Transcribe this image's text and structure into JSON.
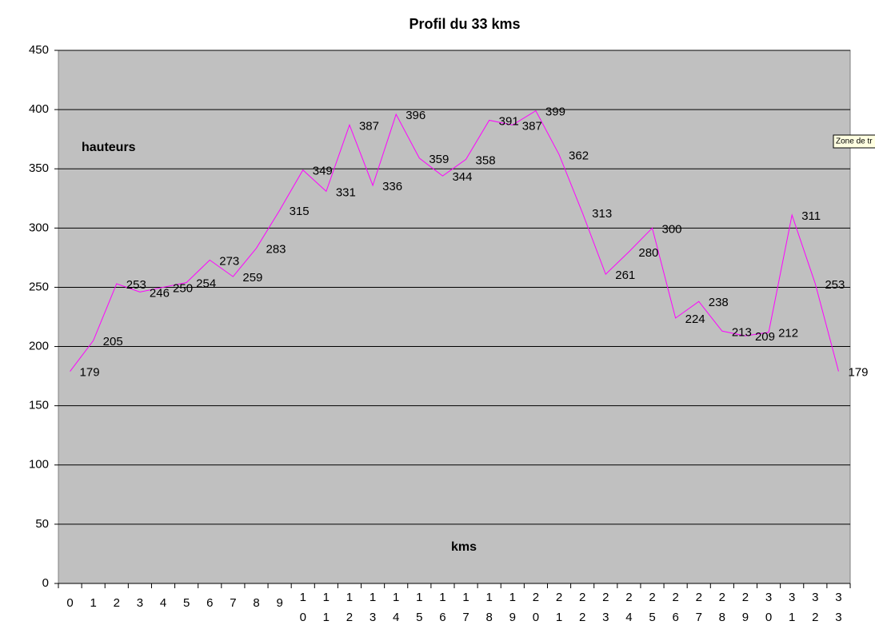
{
  "chart_data": {
    "type": "line",
    "title": "Profil du 33 kms",
    "annotations": [
      "hauteurs",
      "kms"
    ],
    "tooltip": "Zone de tr",
    "categories": [
      "0",
      "1",
      "2",
      "3",
      "4",
      "5",
      "6",
      "7",
      "8",
      "9",
      "10",
      "11",
      "12",
      "13",
      "14",
      "15",
      "16",
      "17",
      "18",
      "19",
      "20",
      "21",
      "22",
      "23",
      "24",
      "25",
      "26",
      "27",
      "28",
      "29",
      "30",
      "31",
      "32",
      "33"
    ],
    "values": [
      179,
      205,
      253,
      246,
      250,
      254,
      273,
      259,
      283,
      315,
      349,
      331,
      387,
      336,
      396,
      359,
      344,
      358,
      391,
      387,
      399,
      362,
      313,
      261,
      280,
      300,
      224,
      238,
      213,
      209,
      212,
      311,
      253,
      179
    ],
    "color": "#ff00ff",
    "background": "#c0c0c0",
    "ylim": [
      0,
      450
    ],
    "yticks": [
      0,
      50,
      100,
      150,
      200,
      250,
      300,
      350,
      400,
      450
    ],
    "grid": true
  }
}
